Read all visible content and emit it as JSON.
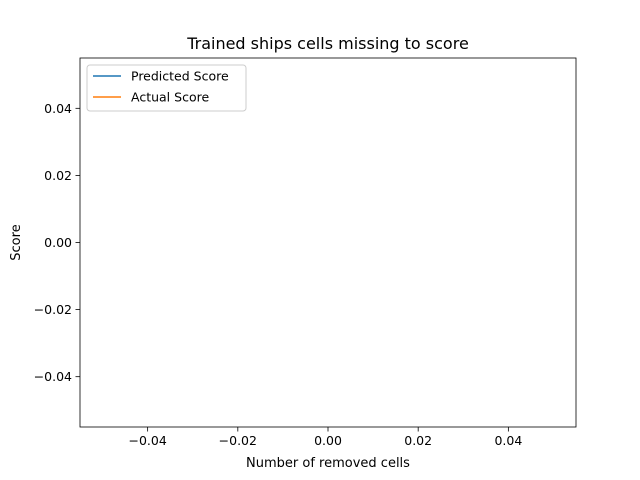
{
  "chart_data": {
    "type": "line",
    "title": "Trained ships cells missing to score",
    "xlabel": "Number of removed cells",
    "ylabel": "Score",
    "xlim": [
      -0.055,
      0.055
    ],
    "ylim": [
      -0.055,
      0.055
    ],
    "x_ticks": [
      -0.04,
      -0.02,
      0.0,
      0.02,
      0.04
    ],
    "y_ticks": [
      -0.04,
      -0.02,
      0.0,
      0.02,
      0.04
    ],
    "x_tick_labels": [
      "−0.04",
      "−0.02",
      "0.00",
      "0.02",
      "0.04"
    ],
    "y_tick_labels": [
      "−0.04",
      "−0.02",
      "0.00",
      "0.02",
      "0.04"
    ],
    "grid": false,
    "legend_position": "top-left",
    "series": [
      {
        "name": "Predicted Score",
        "color": "#1f77b4",
        "x": [],
        "y": []
      },
      {
        "name": "Actual Score",
        "color": "#ff7f0e",
        "x": [],
        "y": []
      }
    ]
  }
}
